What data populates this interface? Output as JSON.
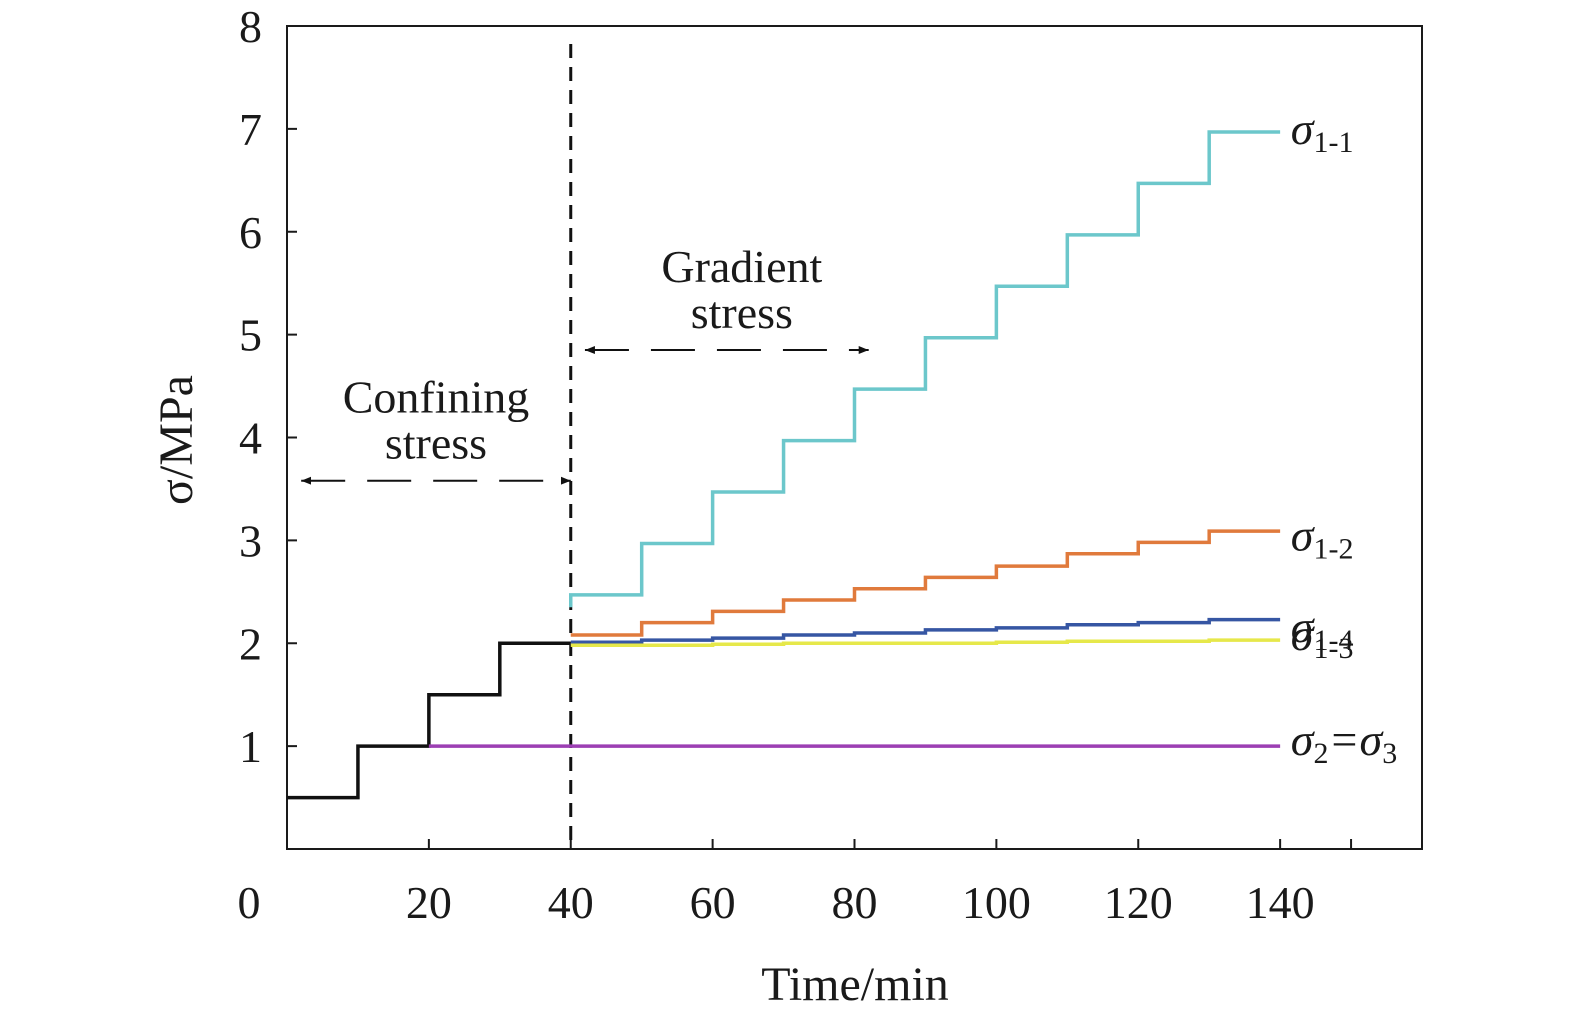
{
  "chart_data": {
    "type": "line",
    "title": "",
    "xlabel": "Time/min",
    "ylabel": "σ/MPa",
    "xlim": [
      0,
      160
    ],
    "ylim": [
      0,
      8
    ],
    "x_ticks": [
      "0",
      "20",
      "40",
      "60",
      "80",
      "100",
      "120",
      "140"
    ],
    "y_ticks": [
      "1",
      "2",
      "3",
      "4",
      "5",
      "6",
      "7",
      "8"
    ],
    "grid": false,
    "series": [
      {
        "name": "",
        "color": "#111111",
        "steps": [
          [
            0,
            0.5
          ],
          [
            10,
            1.0
          ],
          [
            20,
            1.5
          ],
          [
            30,
            2.0
          ],
          [
            40,
            2.0
          ]
        ]
      },
      {
        "name": "σ1-1",
        "label": {
          "sym": "σ",
          "sub": "1-1"
        },
        "color": "#6cc7cb",
        "steps": [
          [
            40,
            2.35
          ],
          [
            40,
            2.47
          ],
          [
            50,
            2.97
          ],
          [
            60,
            3.47
          ],
          [
            70,
            3.97
          ],
          [
            80,
            4.47
          ],
          [
            90,
            4.97
          ],
          [
            100,
            5.47
          ],
          [
            110,
            5.97
          ],
          [
            120,
            6.47
          ],
          [
            130,
            6.97
          ],
          [
            140,
            6.97
          ]
        ]
      },
      {
        "name": "σ1-2",
        "label": {
          "sym": "σ",
          "sub": "1-2"
        },
        "color": "#e07a3c",
        "steps": [
          [
            40,
            2.08
          ],
          [
            50,
            2.2
          ],
          [
            60,
            2.31
          ],
          [
            70,
            2.42
          ],
          [
            80,
            2.53
          ],
          [
            90,
            2.64
          ],
          [
            100,
            2.75
          ],
          [
            110,
            2.87
          ],
          [
            120,
            2.98
          ],
          [
            130,
            3.09
          ],
          [
            140,
            3.09
          ]
        ]
      },
      {
        "name": "σ1-3",
        "label": {
          "sym": "σ",
          "sub": "1-3"
        },
        "color": "#3656a3",
        "steps": [
          [
            40,
            2.01
          ],
          [
            50,
            2.03
          ],
          [
            60,
            2.05
          ],
          [
            70,
            2.08
          ],
          [
            80,
            2.1
          ],
          [
            90,
            2.13
          ],
          [
            100,
            2.15
          ],
          [
            110,
            2.18
          ],
          [
            120,
            2.2
          ],
          [
            130,
            2.23
          ],
          [
            140,
            2.23
          ]
        ]
      },
      {
        "name": "σ1-4",
        "label": {
          "sym": "σ",
          "sub": "1-4"
        },
        "color": "#e6e84a",
        "steps": [
          [
            40,
            1.98
          ],
          [
            50,
            1.98
          ],
          [
            60,
            1.99
          ],
          [
            70,
            2.0
          ],
          [
            80,
            2.0
          ],
          [
            90,
            2.0
          ],
          [
            100,
            2.01
          ],
          [
            110,
            2.02
          ],
          [
            120,
            2.02
          ],
          [
            130,
            2.03
          ],
          [
            140,
            2.03
          ]
        ]
      },
      {
        "name": "σ2=σ3",
        "label": {
          "sym": "σ",
          "sub": "2",
          "eq": "=",
          "sym2": "σ",
          "sub2": "3"
        },
        "color": "#9c3fb3",
        "steps": [
          [
            20,
            1.0
          ],
          [
            140,
            1.0
          ]
        ]
      }
    ],
    "annotations": {
      "divider_x": 40,
      "confining": {
        "line1": "Confining",
        "line2": "stress",
        "range": [
          2,
          40
        ],
        "y": 3.58
      },
      "gradient": {
        "line1": "Gradient",
        "line2": "stress",
        "range": [
          42,
          82
        ],
        "y": 4.85
      }
    }
  }
}
